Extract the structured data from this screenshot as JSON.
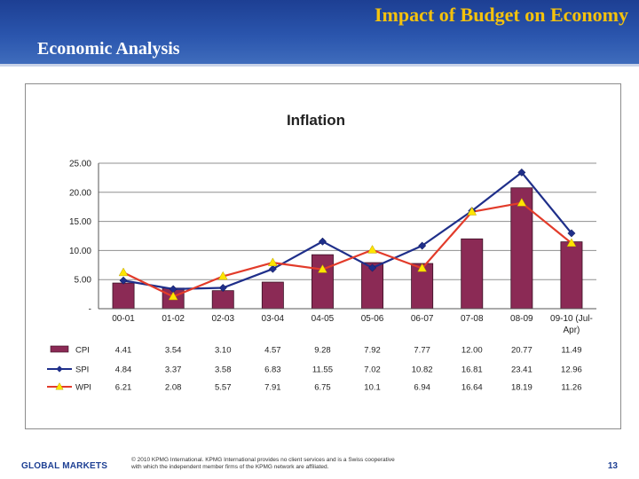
{
  "header": {
    "title": "Impact of Budget on Economy",
    "subtitle": "Economic Analysis"
  },
  "footer": {
    "brand": "GLOBAL MARKETS",
    "copyright_line1": "© 2010 KPMG International. KPMG International provides no client services and is a Swiss cooperative",
    "copyright_line2": "with which the independent member firms of the KPMG network are affiliated.",
    "page_number": "13"
  },
  "colors": {
    "header_blue": "#1d3f93",
    "title_gold": "#f4c20d",
    "cpi_bar": "#8b2a55",
    "spi_line": "#1f2f8a",
    "wpi_line": "#e23b2a",
    "wpi_marker": "#ffe500"
  },
  "chart_data": {
    "type": "bar",
    "title": "Inflation",
    "categories": [
      "00-01",
      "01-02",
      "02-03",
      "03-04",
      "04-05",
      "05-06",
      "06-07",
      "07-08",
      "08-09",
      "09-10 (Jul-Apr)"
    ],
    "category_lines": [
      [
        "00-01"
      ],
      [
        "01-02"
      ],
      [
        "02-03"
      ],
      [
        "03-04"
      ],
      [
        "04-05"
      ],
      [
        "05-06"
      ],
      [
        "06-07"
      ],
      [
        "07-08"
      ],
      [
        "08-09"
      ],
      [
        "09-10 (Jul-",
        "Apr)"
      ]
    ],
    "y_ticks": [
      "25.00",
      "20.00",
      "15.00",
      "10.00",
      "5.00",
      "-"
    ],
    "y_tick_values": [
      25,
      20,
      15,
      10,
      5,
      0
    ],
    "ylim": [
      0,
      25
    ],
    "grid": true,
    "legend": "data-table-below",
    "series": [
      {
        "name": "CPI",
        "kind": "bar",
        "values": [
          4.41,
          3.54,
          3.1,
          4.57,
          9.28,
          7.92,
          7.77,
          12.0,
          20.77,
          11.49
        ],
        "labels": [
          "4.41",
          "3.54",
          "3.10",
          "4.57",
          "9.28",
          "7.92",
          "7.77",
          "12.00",
          "20.77",
          "11.49"
        ]
      },
      {
        "name": "SPI",
        "kind": "line",
        "marker": "diamond",
        "values": [
          4.84,
          3.37,
          3.58,
          6.83,
          11.55,
          7.02,
          10.82,
          16.81,
          23.41,
          12.96
        ],
        "labels": [
          "4.84",
          "3.37",
          "3.58",
          "6.83",
          "11.55",
          "7.02",
          "10.82",
          "16.81",
          "23.41",
          "12.96"
        ]
      },
      {
        "name": "WPI",
        "kind": "line",
        "marker": "triangle",
        "values": [
          6.21,
          2.08,
          5.57,
          7.91,
          6.75,
          10.1,
          6.94,
          16.64,
          18.19,
          11.26
        ],
        "labels": [
          "6.21",
          "2.08",
          "5.57",
          "7.91",
          "6.75",
          "10.1",
          "6.94",
          "16.64",
          "18.19",
          "11.26"
        ]
      }
    ]
  }
}
